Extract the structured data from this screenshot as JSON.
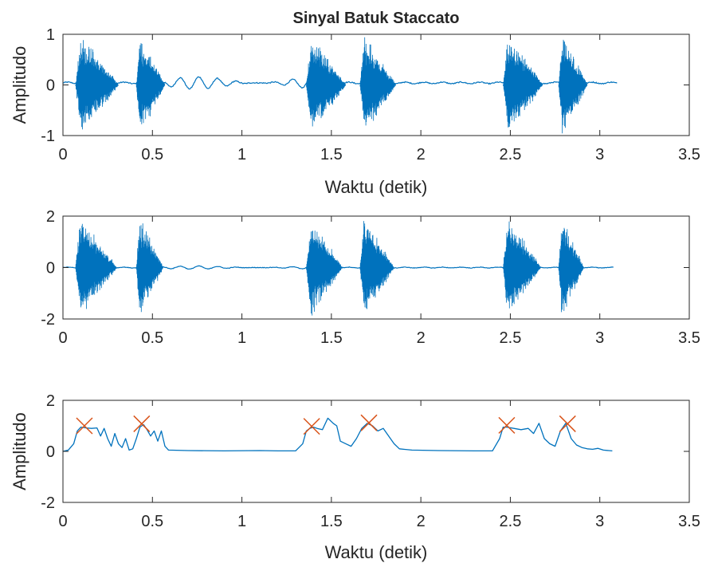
{
  "figure": {
    "title": "Sinyal Batuk Staccato",
    "colors": {
      "signal": "#0072BD",
      "envelope": "#0072BD",
      "peak_marker": "#D95319",
      "axes": "#262626"
    }
  },
  "chart_data": [
    {
      "type": "line",
      "title": "Sinyal Batuk Staccato",
      "xlabel": "Waktu (detik)",
      "ylabel": "Amplitudo",
      "xlim": [
        0,
        3.5
      ],
      "ylim": [
        -1,
        1
      ],
      "xticks": [
        "0",
        "0.5",
        "1",
        "1.5",
        "2",
        "2.5",
        "3",
        "3.5"
      ],
      "yticks": [
        "-1",
        "0",
        "1"
      ],
      "series": [
        {
          "kind": "waveform",
          "t_end": 3.1,
          "baseline": 0.04,
          "bursts": [
            {
              "start": 0.07,
              "end": 0.31,
              "amp": 1.0
            },
            {
              "start": 0.41,
              "end": 0.57,
              "amp": 1.0
            },
            {
              "start": 1.36,
              "end": 1.58,
              "amp": 1.0
            },
            {
              "start": 1.66,
              "end": 1.86,
              "amp": 1.0
            },
            {
              "start": 2.46,
              "end": 2.68,
              "amp": 1.0
            },
            {
              "start": 2.77,
              "end": 2.93,
              "amp": 1.0
            }
          ],
          "low_hum": [
            {
              "start": 0.57,
              "end": 1.36,
              "amp": 0.12
            }
          ]
        }
      ]
    },
    {
      "type": "line",
      "title": "",
      "xlabel": "",
      "ylabel": "",
      "xlim": [
        0,
        3.5
      ],
      "ylim": [
        -2,
        2
      ],
      "xticks": [
        "0",
        "0.5",
        "1",
        "1.5",
        "2",
        "2.5",
        "3",
        "3.5"
      ],
      "yticks": [
        "-2",
        "0",
        "2"
      ],
      "series": [
        {
          "kind": "waveform",
          "t_end": 3.08,
          "baseline": 0.0,
          "bursts": [
            {
              "start": 0.07,
              "end": 0.3,
              "amp": 1.0
            },
            {
              "start": 0.41,
              "end": 0.56,
              "amp": 1.0
            },
            {
              "start": 1.36,
              "end": 1.56,
              "amp": 1.0
            },
            {
              "start": 1.66,
              "end": 1.85,
              "amp": 1.0
            },
            {
              "start": 2.46,
              "end": 2.67,
              "amp": 1.0
            },
            {
              "start": 2.77,
              "end": 2.91,
              "amp": 1.0
            }
          ],
          "low_hum": [
            {
              "start": 0.56,
              "end": 1.36,
              "amp": 0.06
            }
          ]
        }
      ]
    },
    {
      "type": "line",
      "title": "",
      "xlabel": "Waktu (detik)",
      "ylabel": "Amplitudo",
      "xlim": [
        0,
        3.5
      ],
      "ylim": [
        -2,
        2
      ],
      "xticks": [
        "0",
        "0.5",
        "1",
        "1.5",
        "2",
        "2.5",
        "3",
        "3.5"
      ],
      "yticks": [
        "-2",
        "0",
        "2"
      ],
      "series": [
        {
          "kind": "envelope",
          "x": [
            0.0,
            0.03,
            0.06,
            0.08,
            0.1,
            0.13,
            0.16,
            0.19,
            0.21,
            0.23,
            0.25,
            0.27,
            0.29,
            0.31,
            0.33,
            0.35,
            0.37,
            0.39,
            0.41,
            0.43,
            0.45,
            0.47,
            0.49,
            0.51,
            0.53,
            0.55,
            0.57,
            0.59,
            0.7,
            0.9,
            1.1,
            1.2,
            1.3,
            1.34,
            1.36,
            1.38,
            1.4,
            1.42,
            1.45,
            1.48,
            1.51,
            1.53,
            1.55,
            1.58,
            1.61,
            1.64,
            1.67,
            1.7,
            1.73,
            1.76,
            1.79,
            1.82,
            1.85,
            1.88,
            1.95,
            2.1,
            2.3,
            2.4,
            2.44,
            2.46,
            2.48,
            2.52,
            2.56,
            2.6,
            2.63,
            2.66,
            2.69,
            2.72,
            2.75,
            2.78,
            2.81,
            2.84,
            2.87,
            2.9,
            2.93,
            2.96,
            2.99,
            3.02,
            3.05,
            3.07
          ],
          "y": [
            0.0,
            0.05,
            0.3,
            0.8,
            0.95,
            0.92,
            0.9,
            0.92,
            0.6,
            0.9,
            0.5,
            0.2,
            0.7,
            0.3,
            0.15,
            0.5,
            0.05,
            0.1,
            0.5,
            0.95,
            1.05,
            0.85,
            0.6,
            0.8,
            0.4,
            0.8,
            0.2,
            0.05,
            0.03,
            0.02,
            0.03,
            0.02,
            0.02,
            0.3,
            0.8,
            0.9,
            0.95,
            0.9,
            0.85,
            1.3,
            1.1,
            1.0,
            0.4,
            0.3,
            0.2,
            0.5,
            0.9,
            1.1,
            1.0,
            0.8,
            0.9,
            0.6,
            0.3,
            0.1,
            0.05,
            0.03,
            0.02,
            0.02,
            0.5,
            0.95,
            0.95,
            0.9,
            0.85,
            0.9,
            0.7,
            1.1,
            0.5,
            0.3,
            0.2,
            0.8,
            1.1,
            0.5,
            0.25,
            0.15,
            0.1,
            0.08,
            0.12,
            0.05,
            0.03,
            0.02
          ]
        },
        {
          "kind": "peaks",
          "x": [
            0.12,
            0.44,
            1.39,
            1.71,
            2.48,
            2.82
          ],
          "y": [
            1.0,
            1.08,
            0.98,
            1.12,
            1.02,
            1.08
          ]
        }
      ]
    }
  ]
}
